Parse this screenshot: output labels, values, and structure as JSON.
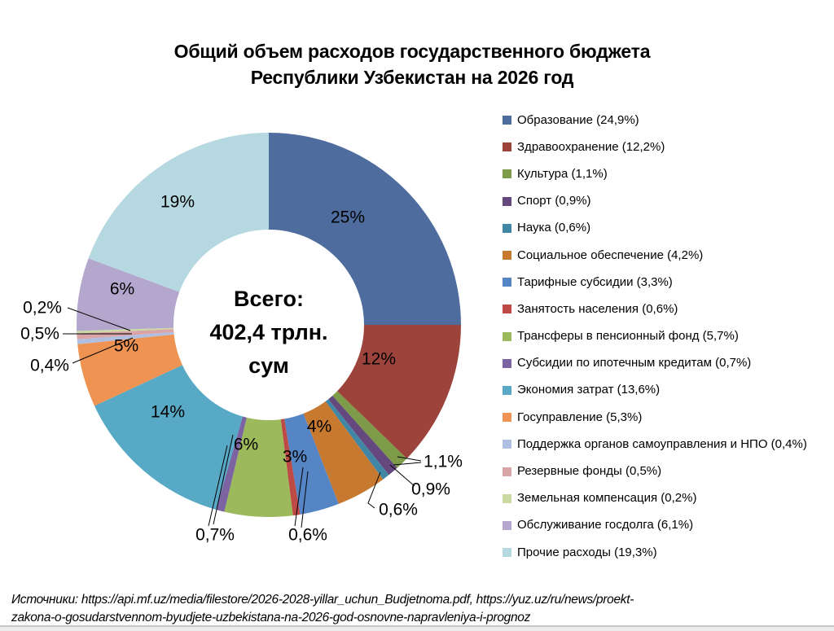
{
  "title": {
    "line1": "Общий объем расходов государственного бюджета",
    "line2": "Республики Узбекистан на 2026 год"
  },
  "chart_data": {
    "type": "pie",
    "subtype": "donut",
    "start_angle": "top",
    "direction": "clockwise",
    "legend_position": "right",
    "title": "Общий объем расходов государственного бюджета Республики Узбекистан на 2026 год",
    "center_label": {
      "line1": "Всего:",
      "line2": "402,4 трлн.",
      "line3": "сум"
    },
    "total_label": "Всего: 402,4 трлн. сум",
    "slices": [
      {
        "name": "Образование",
        "pct": 24.9,
        "data_label": "25%",
        "legend_label": "Образование (24,9%)",
        "color": "#4E6D9E"
      },
      {
        "name": "Здравоохранение",
        "pct": 12.2,
        "data_label": "12%",
        "legend_label": "Здравоохранение (12,2%)",
        "color": "#9C433C"
      },
      {
        "name": "Культура",
        "pct": 1.1,
        "data_label": "1,1%",
        "legend_label": "Культура (1,1%)",
        "color": "#7D9B49"
      },
      {
        "name": "Спорт",
        "pct": 0.9,
        "data_label": "0,9%",
        "legend_label": "Спорт (0,9%)",
        "color": "#65497E"
      },
      {
        "name": "Наука",
        "pct": 0.6,
        "data_label": "0,6%",
        "legend_label": "Наука (0,6%)",
        "color": "#4187A5"
      },
      {
        "name": "Социальное обеспечение",
        "pct": 4.2,
        "data_label": "4%",
        "legend_label": "Социальное обеспечение (4,2%)",
        "color": "#C6792F"
      },
      {
        "name": "Тарифные субсидии",
        "pct": 3.3,
        "data_label": "3%",
        "legend_label": "Тарифные субсидии (3,3%)",
        "color": "#5585C5"
      },
      {
        "name": "Занятость населения",
        "pct": 0.6,
        "data_label": "0,6%",
        "legend_label": "Занятость населения (0,6%)",
        "color": "#BD4A45"
      },
      {
        "name": "Трансферы в пенсионный фонд",
        "pct": 5.7,
        "data_label": "6%",
        "legend_label": "Трансферы в пенсионный фонд (5,7%)",
        "color": "#9CBA5B"
      },
      {
        "name": "Субсидии по ипотечным кредитам",
        "pct": 0.7,
        "data_label": "0,7%",
        "legend_label": "Субсидии по ипотечным кредитам (0,7%)",
        "color": "#7C64A3"
      },
      {
        "name": "Экономия затрат",
        "pct": 13.6,
        "data_label": "14%",
        "legend_label": "Экономия затрат (13,6%)",
        "color": "#57A9C5"
      },
      {
        "name": "Госуправление",
        "pct": 5.3,
        "data_label": "5%",
        "legend_label": "Госуправление (5,3%)",
        "color": "#EF9352"
      },
      {
        "name": "Поддержка органов самоуправления и НПО",
        "pct": 0.4,
        "data_label": "0,4%",
        "legend_label": "Поддержка органов самоуправления и НПО (0,4%)",
        "color": "#AFBFE2"
      },
      {
        "name": "Резервные фонды",
        "pct": 0.5,
        "data_label": "0,5%",
        "legend_label": "Резервные фонды (0,5%)",
        "color": "#D9A5A9"
      },
      {
        "name": "Земельная компенсация",
        "pct": 0.2,
        "data_label": "0,2%",
        "legend_label": "Земельная компенсация (0,2%)",
        "color": "#CBD9A3"
      },
      {
        "name": "Обслуживание госдолга",
        "pct": 6.1,
        "data_label": "6%",
        "legend_label": "Обслуживание госдолга (6,1%)",
        "color": "#B4A7CD"
      },
      {
        "name": "Прочие расходы",
        "pct": 19.3,
        "data_label": "19%",
        "legend_label": "Прочие расходы (19,3%)",
        "color": "#B6D9E1"
      }
    ]
  },
  "source": {
    "line1": "Источники: https://api.mf.uz/media/filestore/2026-2028-yillar_uchun_Budjetnoma.pdf, https://yuz.uz/ru/news/proekt-",
    "line2": "zakona-o-gosudarstvennom-byudjete-uzbekistana-na-2026-god-osnovne-napravleniya-i-prognoz"
  }
}
